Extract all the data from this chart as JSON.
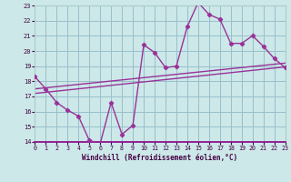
{
  "xlabel": "Windchill (Refroidissement éolien,°C)",
  "bg_color": "#cce8e8",
  "grid_color": "#99bfcc",
  "line_color": "#993399",
  "xlim": [
    0,
    23
  ],
  "ylim": [
    14,
    23
  ],
  "xticks": [
    0,
    1,
    2,
    3,
    4,
    5,
    6,
    7,
    8,
    9,
    10,
    11,
    12,
    13,
    14,
    15,
    16,
    17,
    18,
    19,
    20,
    21,
    22,
    23
  ],
  "yticks": [
    14,
    15,
    16,
    17,
    18,
    19,
    20,
    21,
    22,
    23
  ],
  "series1_x": [
    0,
    1,
    2,
    3,
    4,
    5,
    6,
    7,
    8,
    9,
    10,
    11,
    12,
    13,
    14,
    15,
    16,
    17,
    18,
    19,
    20,
    21,
    22,
    23
  ],
  "series1_y": [
    18.3,
    17.5,
    16.6,
    16.1,
    15.7,
    14.1,
    13.9,
    16.6,
    14.5,
    15.1,
    20.4,
    19.9,
    18.9,
    19.0,
    21.6,
    23.2,
    22.4,
    22.1,
    20.5,
    20.5,
    21.0,
    20.3,
    19.5,
    18.9
  ],
  "trend1_x": [
    0,
    23
  ],
  "trend1_y": [
    17.2,
    18.95
  ],
  "trend2_x": [
    0,
    23
  ],
  "trend2_y": [
    17.5,
    19.2
  ]
}
